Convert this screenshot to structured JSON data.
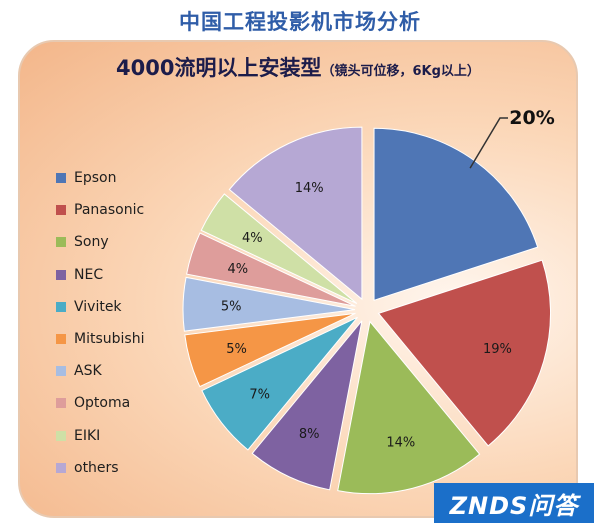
{
  "title": "中国工程投影机市场分析",
  "subtitle": {
    "main": "4000流明以上安装型",
    "note": "（镜头可位移，6Kg以上）"
  },
  "watermark": "ZNDS问答",
  "chart_data": {
    "type": "pie",
    "title": "中国工程投影机市场分析",
    "subtitle": "4000流明以上安装型（镜头可位移，6Kg以上）",
    "legend_position": "left",
    "exploded": true,
    "slices": [
      {
        "label": "Epson",
        "value": 20,
        "value_label": "20%",
        "color": "#4f76b5"
      },
      {
        "label": "Panasonic",
        "value": 19,
        "value_label": "19%",
        "color": "#c0504d"
      },
      {
        "label": "Sony",
        "value": 14,
        "value_label": "14%",
        "color": "#9bbb59"
      },
      {
        "label": "NEC",
        "value": 8,
        "value_label": "8%",
        "color": "#7e62a1"
      },
      {
        "label": "Vivitek",
        "value": 7,
        "value_label": "7%",
        "color": "#4bacc6"
      },
      {
        "label": "Mitsubishi",
        "value": 5,
        "value_label": "5%",
        "color": "#f59646"
      },
      {
        "label": "ASK",
        "value": 5,
        "value_label": "5%",
        "color": "#a7bde2"
      },
      {
        "label": "Optoma",
        "value": 4,
        "value_label": "4%",
        "color": "#de9d9b"
      },
      {
        "label": "EIKI",
        "value": 4,
        "value_label": "4%",
        "color": "#cfe0a6"
      },
      {
        "label": "others",
        "value": 14,
        "value_label": "14%",
        "color": "#b6a8d4"
      }
    ]
  }
}
